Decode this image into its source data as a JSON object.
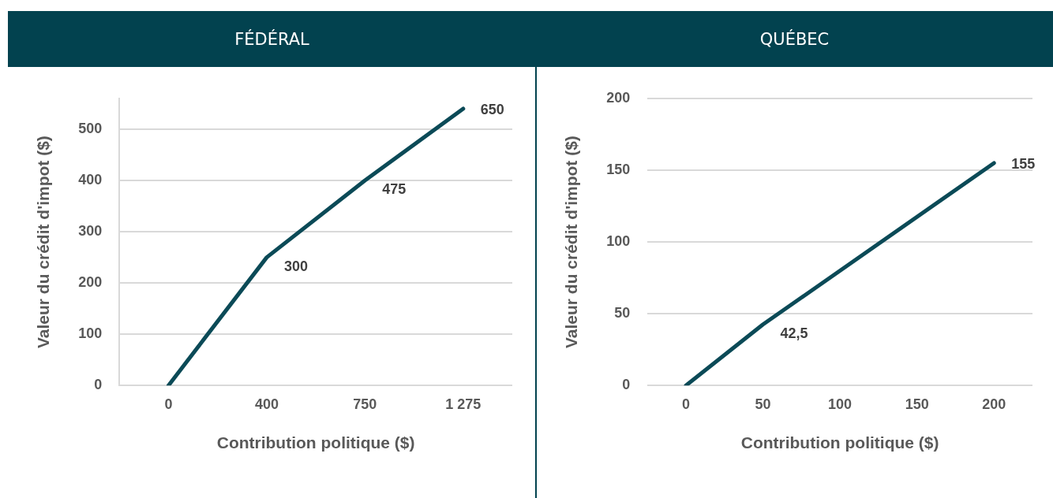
{
  "chart_data": [
    {
      "type": "line",
      "title": "FÉDÉRAL",
      "xlabel": "Contribution politique ($)",
      "ylabel": "Valeur du crédit d'impot ($)",
      "categories": [
        "0",
        "400",
        "750",
        "1 275"
      ],
      "series": [
        {
          "color": "#0b4a57",
          "values": [
            0,
            250,
            400,
            540
          ]
        }
      ],
      "annotations": [
        {
          "text": "300",
          "x": "400",
          "y": 250
        },
        {
          "text": "475",
          "x": "750",
          "y": 400
        },
        {
          "text": "650",
          "x": "1 275",
          "y": 540
        }
      ],
      "ylim": [
        0,
        560
      ],
      "yticks": [
        0,
        100,
        200,
        300,
        400,
        500
      ],
      "grid": "y",
      "legend": false,
      "marker": "none",
      "line_style": "solid"
    },
    {
      "type": "line",
      "title": "QUÉBEC",
      "xlabel": "Contribution politique ($)",
      "ylabel": "Valeur du crédit d'impot ($)",
      "x": [
        0,
        50,
        200
      ],
      "xlim": [
        -25,
        225
      ],
      "xticks": [
        0,
        50,
        100,
        150,
        200
      ],
      "series": [
        {
          "color": "#0b4a57",
          "values": [
            0,
            42.5,
            155
          ],
          "value_labels": [
            null,
            "42,5",
            "155"
          ]
        }
      ],
      "ylim": [
        0,
        200
      ],
      "yticks": [
        0,
        50,
        100,
        150,
        200
      ],
      "grid": "y",
      "legend": false,
      "marker": "none",
      "line_style": "solid"
    }
  ]
}
